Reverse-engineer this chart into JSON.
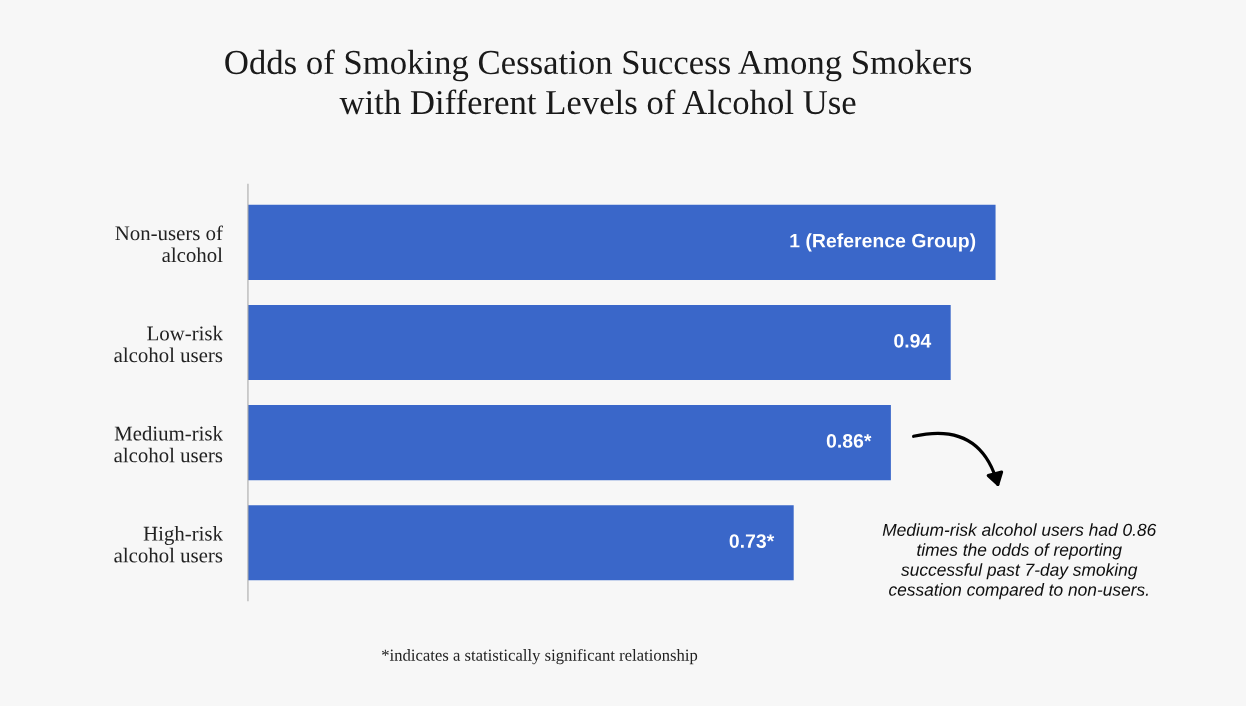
{
  "chart_data": {
    "type": "bar",
    "orientation": "horizontal",
    "title": "Odds of Smoking Cessation Success Among Smokers\nwith Different Levels of Alcohol Use",
    "categories": [
      "Non-users of\nalcohol",
      "Low-risk\nalcohol users",
      "Medium-risk\nalcohol users",
      "High-risk\nalcohol users"
    ],
    "values": [
      1,
      0.94,
      0.86,
      0.73
    ],
    "value_labels": [
      "1 (Reference Group)",
      "0.94",
      "0.86*",
      "0.73*"
    ],
    "color": "#3a67c9",
    "annotations": [
      "Medium-risk alcohol users had 0.86\ntimes the odds of reporting\nsuccessful past 7-day smoking\ncessation compared to non-users.",
      "*indicates a statistically significant relationship"
    ],
    "grid": false,
    "legend": false
  }
}
